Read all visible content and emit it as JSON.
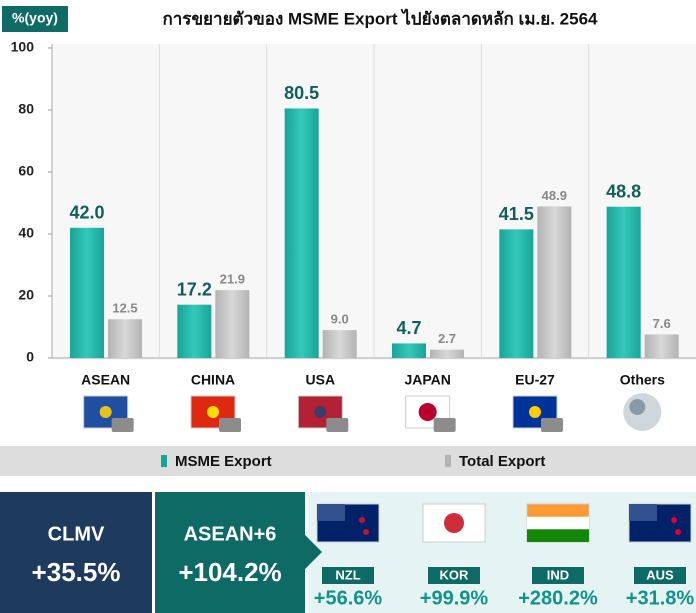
{
  "chart_data": {
    "type": "bar",
    "title": "การขยายตัวของ MSME Export ไปยังตลาดหลัก เม.ย. 2564",
    "y_label": "%(yoy)",
    "categories": [
      "ASEAN",
      "CHINA",
      "USA",
      "JAPAN",
      "EU-27",
      "Others"
    ],
    "series": [
      {
        "name": "MSME Export",
        "color": "#17a598",
        "values": [
          42.0,
          17.2,
          80.5,
          4.7,
          41.5,
          48.8
        ],
        "value_labels": [
          "42.0",
          "17.2",
          "80.5",
          "4.7",
          "41.5",
          "48.8"
        ]
      },
      {
        "name": "Total Export",
        "color": "#b3b3b3",
        "values": [
          12.5,
          21.9,
          9.0,
          2.7,
          48.9,
          7.6
        ],
        "value_labels": [
          "12.5",
          "21.9",
          "9.0",
          "2.7",
          "48.9",
          "7.6"
        ]
      }
    ],
    "ylim": [
      0,
      100
    ],
    "yticks": [
      0,
      20,
      40,
      60,
      80,
      100
    ],
    "grid": true
  },
  "summary": {
    "groups": [
      {
        "name": "CLMV",
        "value": "+35.5%"
      },
      {
        "name": "ASEAN+6",
        "value": "+104.2%"
      }
    ],
    "countries": [
      {
        "name": "NZL",
        "value": "+56.6%"
      },
      {
        "name": "KOR",
        "value": "+99.9%"
      },
      {
        "name": "IND",
        "value": "+280.2%"
      },
      {
        "name": "AUS",
        "value": "+31.8%"
      }
    ]
  }
}
